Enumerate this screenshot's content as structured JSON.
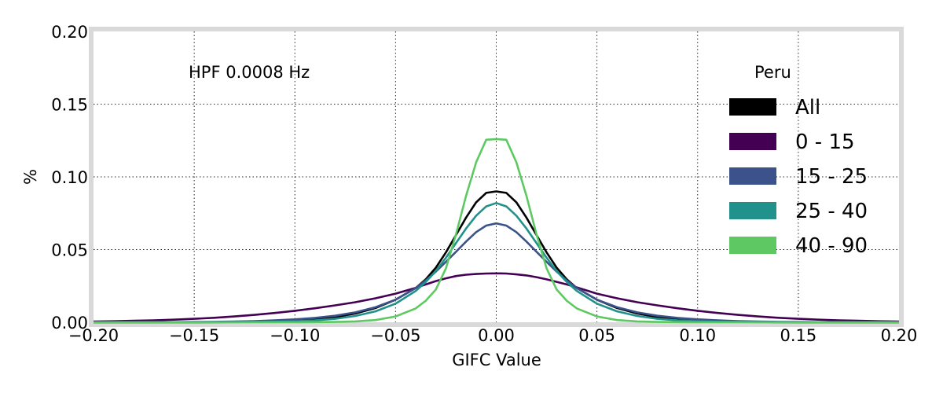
{
  "chart_data": {
    "type": "line",
    "title": "",
    "xlabel": "GIFC Value",
    "ylabel": "%",
    "xlim": [
      -0.2,
      0.2
    ],
    "ylim": [
      0.0,
      0.2
    ],
    "xticks": [
      -0.2,
      -0.15,
      -0.1,
      -0.05,
      0.0,
      0.05,
      0.1,
      0.15,
      0.2
    ],
    "xtick_labels": [
      "−0.20",
      "−0.15",
      "−0.10",
      "−0.05",
      "0.00",
      "0.05",
      "0.10",
      "0.15",
      "0.20"
    ],
    "yticks": [
      0.0,
      0.05,
      0.1,
      0.15,
      0.2
    ],
    "ytick_labels": [
      "0.00",
      "0.05",
      "0.10",
      "0.15",
      "0.20"
    ],
    "grid": true,
    "annotation": "HPF 0.0008 Hz",
    "legend": {
      "title": "Peru",
      "placement": "top-right"
    },
    "x": [
      -0.2,
      -0.19,
      -0.18,
      -0.17,
      -0.16,
      -0.15,
      -0.14,
      -0.13,
      -0.12,
      -0.11,
      -0.1,
      -0.09,
      -0.08,
      -0.07,
      -0.06,
      -0.05,
      -0.04,
      -0.035,
      -0.03,
      -0.025,
      -0.02,
      -0.015,
      -0.01,
      -0.005,
      0.0,
      0.005,
      0.01,
      0.015,
      0.02,
      0.025,
      0.03,
      0.035,
      0.04,
      0.05,
      0.06,
      0.07,
      0.08,
      0.09,
      0.1,
      0.11,
      0.12,
      0.13,
      0.14,
      0.15,
      0.16,
      0.17,
      0.18,
      0.19,
      0.2
    ],
    "series": [
      {
        "name": "All",
        "color": "#000000",
        "values": [
          0.0,
          0.0,
          0.0,
          0.0,
          0.0,
          0.0,
          0.0001,
          0.0002,
          0.0003,
          0.0006,
          0.0011,
          0.002,
          0.0035,
          0.006,
          0.0098,
          0.0155,
          0.0235,
          0.0295,
          0.0375,
          0.048,
          0.06,
          0.072,
          0.0825,
          0.089,
          0.09,
          0.089,
          0.0825,
          0.072,
          0.06,
          0.048,
          0.0375,
          0.0295,
          0.0235,
          0.0155,
          0.0098,
          0.006,
          0.0035,
          0.002,
          0.0011,
          0.0006,
          0.0003,
          0.0002,
          0.0001,
          0.0,
          0.0,
          0.0,
          0.0,
          0.0,
          0.0
        ]
      },
      {
        "name": "0 - 15",
        "color": "#440154",
        "values": [
          0.0005,
          0.0007,
          0.001,
          0.0013,
          0.0018,
          0.0024,
          0.0031,
          0.004,
          0.0051,
          0.0064,
          0.0079,
          0.0096,
          0.0116,
          0.0138,
          0.0165,
          0.0197,
          0.0237,
          0.026,
          0.0283,
          0.0302,
          0.0318,
          0.0327,
          0.0332,
          0.0335,
          0.0336,
          0.0335,
          0.0329,
          0.0322,
          0.031,
          0.0295,
          0.0278,
          0.026,
          0.024,
          0.0197,
          0.0165,
          0.0138,
          0.0116,
          0.0096,
          0.0079,
          0.0064,
          0.0051,
          0.004,
          0.0031,
          0.0024,
          0.0018,
          0.0013,
          0.001,
          0.0007,
          0.0005
        ]
      },
      {
        "name": "15 - 25",
        "color": "#3b528b",
        "values": [
          0.0,
          0.0,
          0.0,
          0.0001,
          0.0001,
          0.0002,
          0.0003,
          0.0005,
          0.0008,
          0.0013,
          0.002,
          0.003,
          0.0045,
          0.0068,
          0.0103,
          0.0155,
          0.0235,
          0.0288,
          0.0348,
          0.0415,
          0.0485,
          0.0555,
          0.062,
          0.0665,
          0.068,
          0.0665,
          0.062,
          0.0555,
          0.0485,
          0.0415,
          0.0348,
          0.0288,
          0.0235,
          0.0155,
          0.0103,
          0.0068,
          0.0045,
          0.003,
          0.002,
          0.0013,
          0.0008,
          0.0005,
          0.0003,
          0.0002,
          0.0001,
          0.0001,
          0.0,
          0.0,
          0.0
        ]
      },
      {
        "name": "25 - 40",
        "color": "#21918c",
        "values": [
          0.0,
          0.0,
          0.0,
          0.0,
          0.0,
          0.0,
          0.0,
          0.0001,
          0.0002,
          0.0004,
          0.0007,
          0.0013,
          0.0024,
          0.0043,
          0.0075,
          0.0128,
          0.0215,
          0.0277,
          0.0352,
          0.0443,
          0.0545,
          0.0645,
          0.0733,
          0.0797,
          0.082,
          0.0797,
          0.0733,
          0.0645,
          0.0545,
          0.0443,
          0.0352,
          0.0277,
          0.0215,
          0.0128,
          0.0075,
          0.0043,
          0.0024,
          0.0013,
          0.0007,
          0.0004,
          0.0002,
          0.0001,
          0.0,
          0.0,
          0.0,
          0.0,
          0.0,
          0.0,
          0.0
        ]
      },
      {
        "name": "40 - 90",
        "color": "#5ec962",
        "values": [
          0.0,
          0.0,
          0.0,
          0.0,
          0.0,
          0.0,
          0.0,
          0.0,
          0.0,
          0.0,
          0.0,
          0.0001,
          0.0002,
          0.0006,
          0.0015,
          0.004,
          0.0095,
          0.0148,
          0.0225,
          0.037,
          0.0605,
          0.087,
          0.11,
          0.1255,
          0.126,
          0.1255,
          0.11,
          0.087,
          0.0605,
          0.037,
          0.0225,
          0.0148,
          0.0095,
          0.004,
          0.0015,
          0.0006,
          0.0002,
          0.0001,
          0.0,
          0.0,
          0.0,
          0.0,
          0.0,
          0.0,
          0.0,
          0.0,
          0.0,
          0.0,
          0.0
        ]
      }
    ]
  }
}
